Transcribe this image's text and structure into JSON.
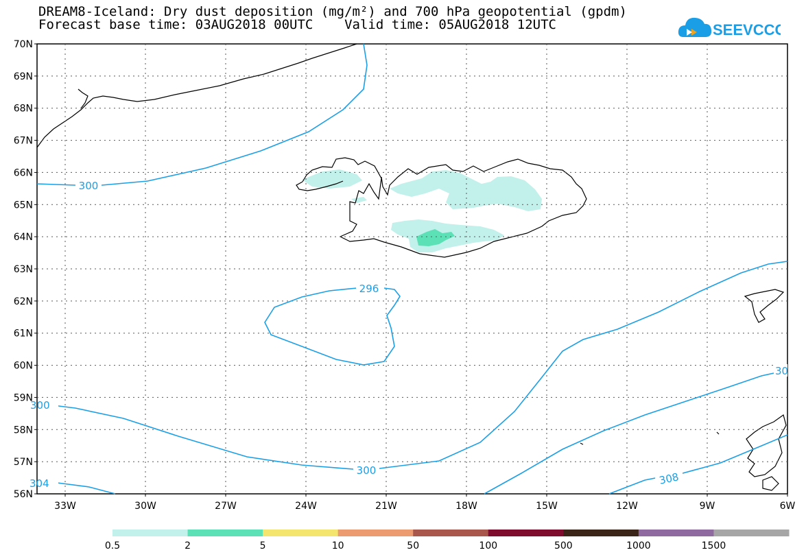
{
  "header": {
    "title_line1": "DREAM8-Iceland: Dry dust deposition (mg/m²) and 700 hPa geopotential (gpdm)",
    "title_line2": "Forecast base time: 03AUG2018 00UTC    Valid time: 05AUG2018 12UTC",
    "logo_text": "SEEVCCC"
  },
  "map": {
    "lat_labels": [
      "70N",
      "69N",
      "68N",
      "67N",
      "66N",
      "65N",
      "64N",
      "63N",
      "62N",
      "61N",
      "60N",
      "59N",
      "58N",
      "57N",
      "56N"
    ],
    "lon_labels": [
      "33W",
      "30W",
      "27W",
      "24W",
      "21W",
      "18W",
      "15W",
      "12W",
      "9W",
      "6W"
    ],
    "contour_labels": [
      "300",
      "296",
      "300",
      "308",
      "300",
      "304",
      "30"
    ],
    "contour_color": "#1a9fe6"
  },
  "colorbar": {
    "ticks": [
      "0.5",
      "2",
      "5",
      "10",
      "50",
      "100",
      "500",
      "1000",
      "1500"
    ],
    "colors": [
      "#c2f0ea",
      "#5ce0b6",
      "#f3e56e",
      "#ec9a6f",
      "#a9574d",
      "#7e0d2d",
      "#3b2418",
      "#8f6aa0",
      "#a6a6a6"
    ]
  }
}
